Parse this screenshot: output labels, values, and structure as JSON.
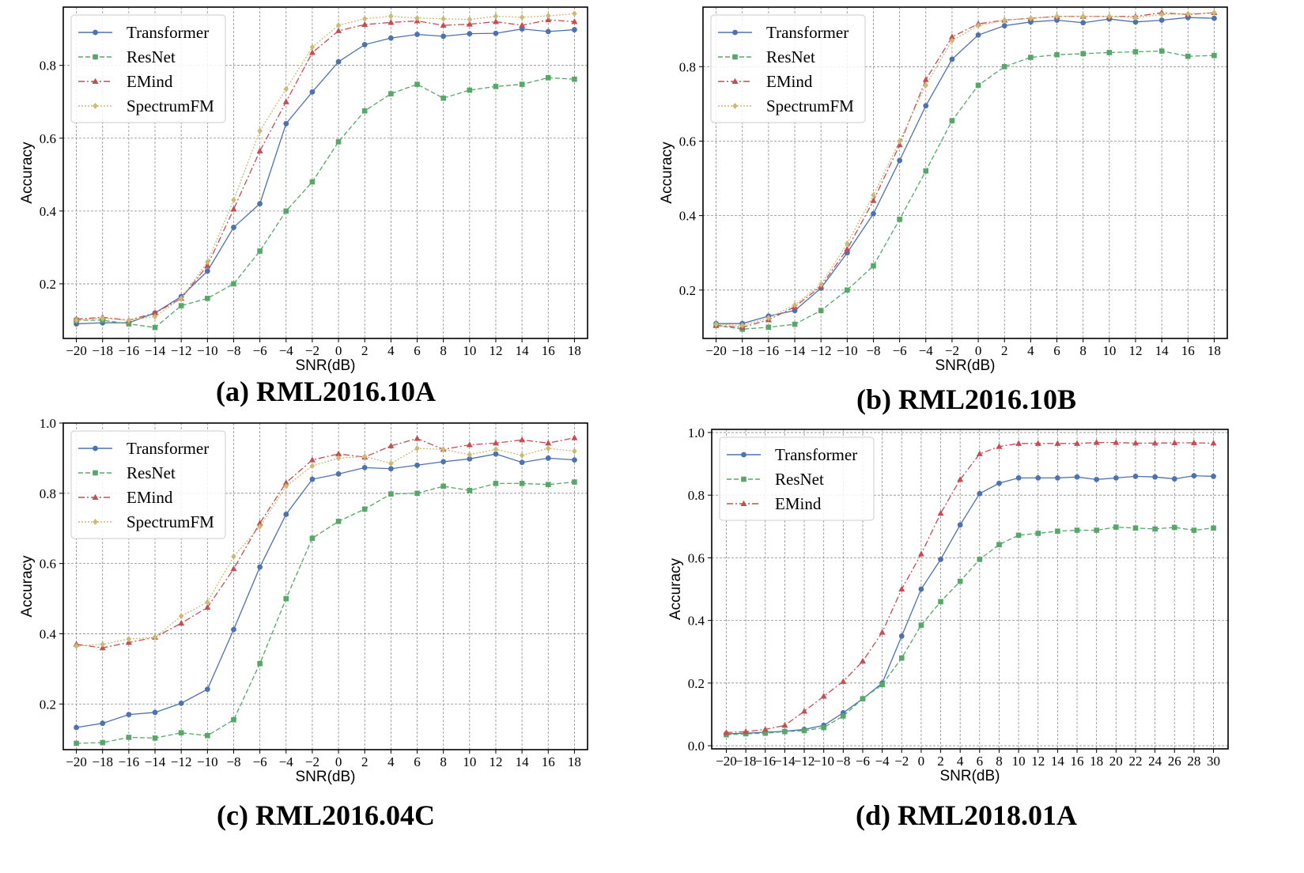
{
  "chart_data": [
    {
      "type": "line",
      "caption": "(a) RML2016.10A",
      "xlabel": "SNR(dB)",
      "ylabel": "Accuracy",
      "xlim": [
        -21,
        19
      ],
      "ylim": [
        0.05,
        0.96
      ],
      "x": [
        -20,
        -18,
        -16,
        -14,
        -12,
        -10,
        -8,
        -6,
        -4,
        -2,
        0,
        2,
        4,
        6,
        8,
        10,
        12,
        14,
        16,
        18
      ],
      "xticks": [
        "−20",
        "−18",
        "−16",
        "−14",
        "−12",
        "−10",
        "−8",
        "−6",
        "−4",
        "−2",
        "0",
        "2",
        "4",
        "6",
        "8",
        "10",
        "12",
        "14",
        "16",
        "18"
      ],
      "yticks": [
        0.2,
        0.4,
        0.6,
        0.8
      ],
      "ytick_labels": [
        "0.2",
        "0.4",
        "0.6",
        "0.8"
      ],
      "grid": true,
      "legend_position": "top-left",
      "series": [
        {
          "name": "Transformer",
          "color": "#4c72b0",
          "marker": "circle",
          "dash": "solid",
          "values": [
            0.09,
            0.093,
            0.093,
            0.12,
            0.165,
            0.235,
            0.355,
            0.42,
            0.64,
            0.727,
            0.81,
            0.857,
            0.875,
            0.885,
            0.88,
            0.887,
            0.888,
            0.9,
            0.893,
            0.898
          ]
        },
        {
          "name": "ResNet",
          "color": "#55a868",
          "marker": "square",
          "dash": "dashed",
          "values": [
            0.1,
            0.1,
            0.09,
            0.08,
            0.14,
            0.16,
            0.2,
            0.29,
            0.4,
            0.48,
            0.59,
            0.675,
            0.722,
            0.748,
            0.71,
            0.732,
            0.742,
            0.748,
            0.766,
            0.762
          ]
        },
        {
          "name": "EMind",
          "color": "#c44e52",
          "marker": "triangle",
          "dash": "dashdot",
          "values": [
            0.103,
            0.108,
            0.1,
            0.12,
            0.16,
            0.25,
            0.405,
            0.565,
            0.7,
            0.835,
            0.895,
            0.912,
            0.918,
            0.922,
            0.91,
            0.913,
            0.92,
            0.91,
            0.925,
            0.92
          ]
        },
        {
          "name": "SpectrumFM",
          "color": "#ccb974",
          "marker": "diamond",
          "dash": "dotted",
          "values": [
            0.1,
            0.105,
            0.1,
            0.11,
            0.16,
            0.26,
            0.43,
            0.62,
            0.735,
            0.85,
            0.91,
            0.928,
            0.935,
            0.93,
            0.928,
            0.926,
            0.935,
            0.932,
            0.936,
            0.942
          ]
        }
      ]
    },
    {
      "type": "line",
      "caption": "(b) RML2016.10B",
      "xlabel": "SNR(dB)",
      "ylabel": "Accuracy",
      "xlim": [
        -21,
        19
      ],
      "ylim": [
        0.07,
        0.96
      ],
      "x": [
        -20,
        -18,
        -16,
        -14,
        -12,
        -10,
        -8,
        -6,
        -4,
        -2,
        0,
        2,
        4,
        6,
        8,
        10,
        12,
        14,
        16,
        18
      ],
      "xticks": [
        "−20",
        "−18",
        "−16",
        "−14",
        "−12",
        "−10",
        "−8",
        "−6",
        "−4",
        "−2",
        "0",
        "2",
        "4",
        "6",
        "8",
        "10",
        "12",
        "14",
        "16",
        "18"
      ],
      "yticks": [
        0.2,
        0.4,
        0.6,
        0.8
      ],
      "ytick_labels": [
        "0.2",
        "0.4",
        "0.6",
        "0.8"
      ],
      "grid": true,
      "legend_position": "top-left",
      "series": [
        {
          "name": "Transformer",
          "color": "#4c72b0",
          "marker": "circle",
          "dash": "solid",
          "values": [
            0.11,
            0.11,
            0.13,
            0.145,
            0.205,
            0.3,
            0.405,
            0.548,
            0.695,
            0.82,
            0.885,
            0.91,
            0.92,
            0.925,
            0.918,
            0.928,
            0.92,
            0.925,
            0.932,
            0.93
          ]
        },
        {
          "name": "ResNet",
          "color": "#55a868",
          "marker": "square",
          "dash": "dashed",
          "values": [
            0.105,
            0.095,
            0.1,
            0.108,
            0.145,
            0.2,
            0.265,
            0.39,
            0.52,
            0.655,
            0.75,
            0.8,
            0.825,
            0.832,
            0.835,
            0.838,
            0.84,
            0.842,
            0.828,
            0.83
          ]
        },
        {
          "name": "EMind",
          "color": "#c44e52",
          "marker": "triangle",
          "dash": "dashdot",
          "values": [
            0.105,
            0.1,
            0.12,
            0.155,
            0.21,
            0.31,
            0.44,
            0.59,
            0.765,
            0.88,
            0.915,
            0.925,
            0.93,
            0.935,
            0.935,
            0.935,
            0.935,
            0.945,
            0.94,
            0.945
          ]
        },
        {
          "name": "SpectrumFM",
          "color": "#ccb974",
          "marker": "diamond",
          "dash": "dotted",
          "values": [
            0.108,
            0.105,
            0.125,
            0.16,
            0.215,
            0.325,
            0.455,
            0.6,
            0.75,
            0.87,
            0.91,
            0.925,
            0.93,
            0.935,
            0.935,
            0.935,
            0.932,
            0.94,
            0.942,
            0.945
          ]
        }
      ]
    },
    {
      "type": "line",
      "caption": "(c) RML2016.04C",
      "xlabel": "SNR(dB)",
      "ylabel": "Accuracy",
      "xlim": [
        -21,
        19
      ],
      "ylim": [
        0.07,
        1.0
      ],
      "x": [
        -20,
        -18,
        -16,
        -14,
        -12,
        -10,
        -8,
        -6,
        -4,
        -2,
        0,
        2,
        4,
        6,
        8,
        10,
        12,
        14,
        16,
        18
      ],
      "xticks": [
        "−20",
        "−18",
        "−16",
        "−14",
        "−12",
        "−10",
        "−8",
        "−6",
        "−4",
        "−2",
        "0",
        "2",
        "4",
        "6",
        "8",
        "10",
        "12",
        "14",
        "16",
        "18"
      ],
      "yticks": [
        0.2,
        0.4,
        0.6,
        0.8,
        1.0
      ],
      "ytick_labels": [
        "0.2",
        "0.4",
        "0.6",
        "0.8",
        "1.0"
      ],
      "grid": true,
      "legend_position": "top-left",
      "series": [
        {
          "name": "Transformer",
          "color": "#4c72b0",
          "marker": "circle",
          "dash": "solid",
          "values": [
            0.133,
            0.145,
            0.17,
            0.176,
            0.202,
            0.242,
            0.412,
            0.59,
            0.74,
            0.84,
            0.855,
            0.873,
            0.87,
            0.88,
            0.89,
            0.898,
            0.912,
            0.888,
            0.9,
            0.895
          ]
        },
        {
          "name": "ResNet",
          "color": "#55a868",
          "marker": "square",
          "dash": "dashed",
          "values": [
            0.088,
            0.09,
            0.105,
            0.103,
            0.118,
            0.11,
            0.155,
            0.315,
            0.5,
            0.672,
            0.72,
            0.755,
            0.798,
            0.8,
            0.82,
            0.808,
            0.828,
            0.828,
            0.825,
            0.832
          ]
        },
        {
          "name": "EMind",
          "color": "#c44e52",
          "marker": "triangle",
          "dash": "dashdot",
          "values": [
            0.37,
            0.36,
            0.375,
            0.39,
            0.43,
            0.475,
            0.585,
            0.715,
            0.83,
            0.895,
            0.912,
            0.903,
            0.935,
            0.956,
            0.925,
            0.938,
            0.943,
            0.952,
            0.943,
            0.958
          ]
        },
        {
          "name": "SpectrumFM",
          "color": "#ccb974",
          "marker": "diamond",
          "dash": "dotted",
          "values": [
            0.365,
            0.37,
            0.385,
            0.39,
            0.45,
            0.49,
            0.62,
            0.705,
            0.82,
            0.878,
            0.9,
            0.905,
            0.885,
            0.928,
            0.925,
            0.91,
            0.925,
            0.908,
            0.928,
            0.92
          ]
        }
      ]
    },
    {
      "type": "line",
      "caption": "(d) RML2018.01A",
      "xlabel": "SNR(dB)",
      "ylabel": "Accuracy",
      "xlim": [
        -21.5,
        31.5
      ],
      "ylim": [
        -0.01,
        1.01
      ],
      "x": [
        -20,
        -18,
        -16,
        -14,
        -12,
        -10,
        -8,
        -6,
        -4,
        -2,
        0,
        2,
        4,
        6,
        8,
        10,
        12,
        14,
        16,
        18,
        20,
        22,
        24,
        26,
        28,
        30
      ],
      "xticks": [
        "−20",
        "−18",
        "−16",
        "−14",
        "−12",
        "−10",
        "−8",
        "−6",
        "−4",
        "−2",
        "0",
        "2",
        "4",
        "6",
        "8",
        "10",
        "12",
        "14",
        "16",
        "18",
        "20",
        "22",
        "24",
        "26",
        "28",
        "30"
      ],
      "yticks": [
        0.0,
        0.2,
        0.4,
        0.6,
        0.8,
        1.0
      ],
      "ytick_labels": [
        "0.0",
        "0.2",
        "0.4",
        "0.6",
        "0.8",
        "1.0"
      ],
      "grid": true,
      "legend_position": "top-left",
      "series": [
        {
          "name": "Transformer",
          "color": "#4c72b0",
          "marker": "circle",
          "dash": "solid",
          "values": [
            0.038,
            0.04,
            0.043,
            0.046,
            0.052,
            0.065,
            0.105,
            0.15,
            0.2,
            0.35,
            0.5,
            0.595,
            0.705,
            0.805,
            0.838,
            0.855,
            0.855,
            0.855,
            0.858,
            0.85,
            0.855,
            0.86,
            0.858,
            0.852,
            0.862,
            0.86
          ]
        },
        {
          "name": "ResNet",
          "color": "#55a868",
          "marker": "square",
          "dash": "dashed",
          "values": [
            0.035,
            0.038,
            0.04,
            0.045,
            0.048,
            0.058,
            0.095,
            0.15,
            0.195,
            0.28,
            0.385,
            0.46,
            0.525,
            0.595,
            0.642,
            0.672,
            0.678,
            0.685,
            0.688,
            0.688,
            0.698,
            0.695,
            0.692,
            0.697,
            0.688,
            0.695
          ]
        },
        {
          "name": "EMind",
          "color": "#c44e52",
          "marker": "triangle",
          "dash": "dashdot",
          "values": [
            0.042,
            0.045,
            0.052,
            0.065,
            0.11,
            0.158,
            0.205,
            0.27,
            0.362,
            0.5,
            0.612,
            0.742,
            0.85,
            0.932,
            0.955,
            0.965,
            0.965,
            0.965,
            0.965,
            0.968,
            0.968,
            0.966,
            0.966,
            0.967,
            0.967,
            0.966
          ]
        }
      ]
    }
  ]
}
